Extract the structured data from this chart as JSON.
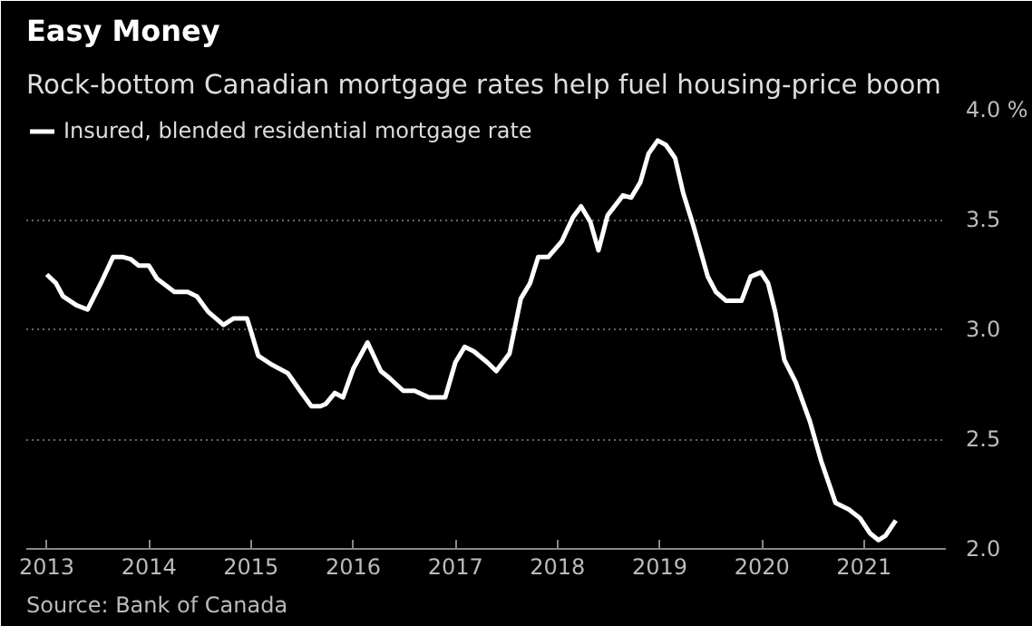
{
  "chart_data": {
    "type": "line",
    "title": "Easy Money",
    "subtitle": "Rock-bottom Canadian mortgage rates help fuel housing-price boom",
    "annotations": [
      "Source: Bank of Canada"
    ],
    "legend": "top left",
    "grid": "y",
    "line_style": "solid",
    "marker": "none",
    "xlim": [
      2012.8,
      2021.8
    ],
    "xticks": [
      2013,
      2014,
      2015,
      2016,
      2017,
      2018,
      2019,
      2020,
      2021
    ],
    "ylim": [
      2.0,
      4.0
    ],
    "yticks": [
      {
        "value": 2.0,
        "label": "2.0"
      },
      {
        "value": 2.5,
        "label": "2.5"
      },
      {
        "value": 3.0,
        "label": "3.0"
      },
      {
        "value": 3.5,
        "label": "3.5"
      },
      {
        "value": 4.0,
        "label": "4.0 %"
      }
    ],
    "series": [
      {
        "name": "Insured, blended residential mortgage rate",
        "color": "#ffffff",
        "x": [
          2013.0,
          2013.09,
          2013.16,
          2013.29,
          2013.4,
          2013.54,
          2013.65,
          2013.74,
          2013.82,
          2013.9,
          2014.0,
          2014.08,
          2014.25,
          2014.38,
          2014.47,
          2014.58,
          2014.73,
          2014.83,
          2014.96,
          2015.0,
          2015.07,
          2015.2,
          2015.36,
          2015.48,
          2015.59,
          2015.68,
          2015.73,
          2015.82,
          2015.9,
          2016.0,
          2016.14,
          2016.27,
          2016.35,
          2016.49,
          2016.6,
          2016.74,
          2016.9,
          2017.0,
          2017.09,
          2017.18,
          2017.31,
          2017.4,
          2017.53,
          2017.64,
          2017.73,
          2017.81,
          2017.91,
          2018.04,
          2018.15,
          2018.23,
          2018.32,
          2018.4,
          2018.49,
          2018.64,
          2018.72,
          2018.81,
          2018.89,
          2018.98,
          2019.06,
          2019.15,
          2019.23,
          2019.33,
          2019.47,
          2019.55,
          2019.65,
          2019.8,
          2019.89,
          2019.99,
          2020.06,
          2020.13,
          2020.22,
          2020.33,
          2020.47,
          2020.58,
          2020.72,
          2020.85,
          2020.96,
          2021.06,
          2021.14,
          2021.21,
          2021.31
        ],
        "values": [
          3.25,
          3.21,
          3.15,
          3.11,
          3.09,
          3.22,
          3.33,
          3.33,
          3.32,
          3.29,
          3.29,
          3.23,
          3.17,
          3.17,
          3.15,
          3.08,
          3.02,
          3.05,
          3.05,
          2.99,
          2.88,
          2.84,
          2.8,
          2.72,
          2.65,
          2.65,
          2.66,
          2.71,
          2.69,
          2.82,
          2.94,
          2.81,
          2.78,
          2.72,
          2.72,
          2.69,
          2.69,
          2.85,
          2.92,
          2.9,
          2.85,
          2.81,
          2.89,
          3.14,
          3.21,
          3.33,
          3.33,
          3.4,
          3.51,
          3.56,
          3.49,
          3.36,
          3.52,
          3.61,
          3.6,
          3.67,
          3.8,
          3.86,
          3.84,
          3.78,
          3.62,
          3.47,
          3.24,
          3.17,
          3.13,
          3.13,
          3.24,
          3.26,
          3.21,
          3.08,
          2.86,
          2.76,
          2.58,
          2.4,
          2.21,
          2.18,
          2.14,
          2.07,
          2.04,
          2.06,
          2.13
        ]
      }
    ]
  }
}
